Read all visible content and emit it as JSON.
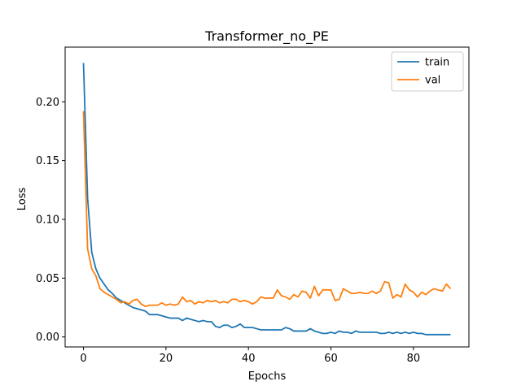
{
  "chart_data": {
    "type": "line",
    "title": "Transformer_no_PE",
    "xlabel": "Epochs",
    "ylabel": "Loss",
    "xlim": [
      -4.45,
      93.45
    ],
    "ylim": [
      -0.0085,
      0.2465
    ],
    "xticks": [
      0,
      20,
      40,
      60,
      80
    ],
    "xtick_labels": [
      "0",
      "20",
      "40",
      "60",
      "80"
    ],
    "yticks": [
      0.0,
      0.05,
      0.1,
      0.15,
      0.2
    ],
    "ytick_labels": [
      "0.00",
      "0.05",
      "0.10",
      "0.15",
      "0.20"
    ],
    "grid": false,
    "legend_position": "top-right",
    "series": [
      {
        "name": "train",
        "color": "#1f77b4",
        "values": [
          0.233,
          0.118,
          0.072,
          0.058,
          0.05,
          0.045,
          0.04,
          0.037,
          0.033,
          0.031,
          0.029,
          0.027,
          0.025,
          0.024,
          0.023,
          0.022,
          0.019,
          0.019,
          0.019,
          0.018,
          0.017,
          0.016,
          0.016,
          0.016,
          0.014,
          0.016,
          0.015,
          0.014,
          0.013,
          0.014,
          0.013,
          0.013,
          0.009,
          0.008,
          0.01,
          0.01,
          0.008,
          0.009,
          0.011,
          0.008,
          0.008,
          0.008,
          0.007,
          0.006,
          0.006,
          0.006,
          0.006,
          0.006,
          0.006,
          0.008,
          0.007,
          0.005,
          0.005,
          0.005,
          0.005,
          0.007,
          0.005,
          0.004,
          0.003,
          0.003,
          0.004,
          0.003,
          0.005,
          0.004,
          0.004,
          0.003,
          0.005,
          0.004,
          0.004,
          0.004,
          0.004,
          0.004,
          0.003,
          0.003,
          0.004,
          0.003,
          0.004,
          0.003,
          0.004,
          0.003,
          0.004,
          0.003,
          0.003,
          0.002,
          0.002,
          0.002,
          0.002,
          0.002,
          0.002,
          0.002
        ]
      },
      {
        "name": "val",
        "color": "#ff7f0e",
        "values": [
          0.192,
          0.075,
          0.058,
          0.052,
          0.041,
          0.038,
          0.036,
          0.034,
          0.032,
          0.029,
          0.03,
          0.028,
          0.031,
          0.032,
          0.028,
          0.026,
          0.027,
          0.027,
          0.027,
          0.029,
          0.027,
          0.028,
          0.027,
          0.028,
          0.034,
          0.03,
          0.031,
          0.028,
          0.03,
          0.029,
          0.031,
          0.03,
          0.031,
          0.029,
          0.03,
          0.029,
          0.032,
          0.032,
          0.03,
          0.031,
          0.03,
          0.028,
          0.03,
          0.034,
          0.033,
          0.033,
          0.033,
          0.04,
          0.035,
          0.034,
          0.032,
          0.036,
          0.034,
          0.039,
          0.038,
          0.033,
          0.043,
          0.035,
          0.04,
          0.04,
          0.04,
          0.031,
          0.032,
          0.041,
          0.039,
          0.037,
          0.037,
          0.038,
          0.037,
          0.037,
          0.039,
          0.037,
          0.039,
          0.047,
          0.046,
          0.033,
          0.036,
          0.034,
          0.045,
          0.04,
          0.038,
          0.034,
          0.038,
          0.036,
          0.039,
          0.041,
          0.04,
          0.039,
          0.045,
          0.041
        ]
      }
    ]
  }
}
